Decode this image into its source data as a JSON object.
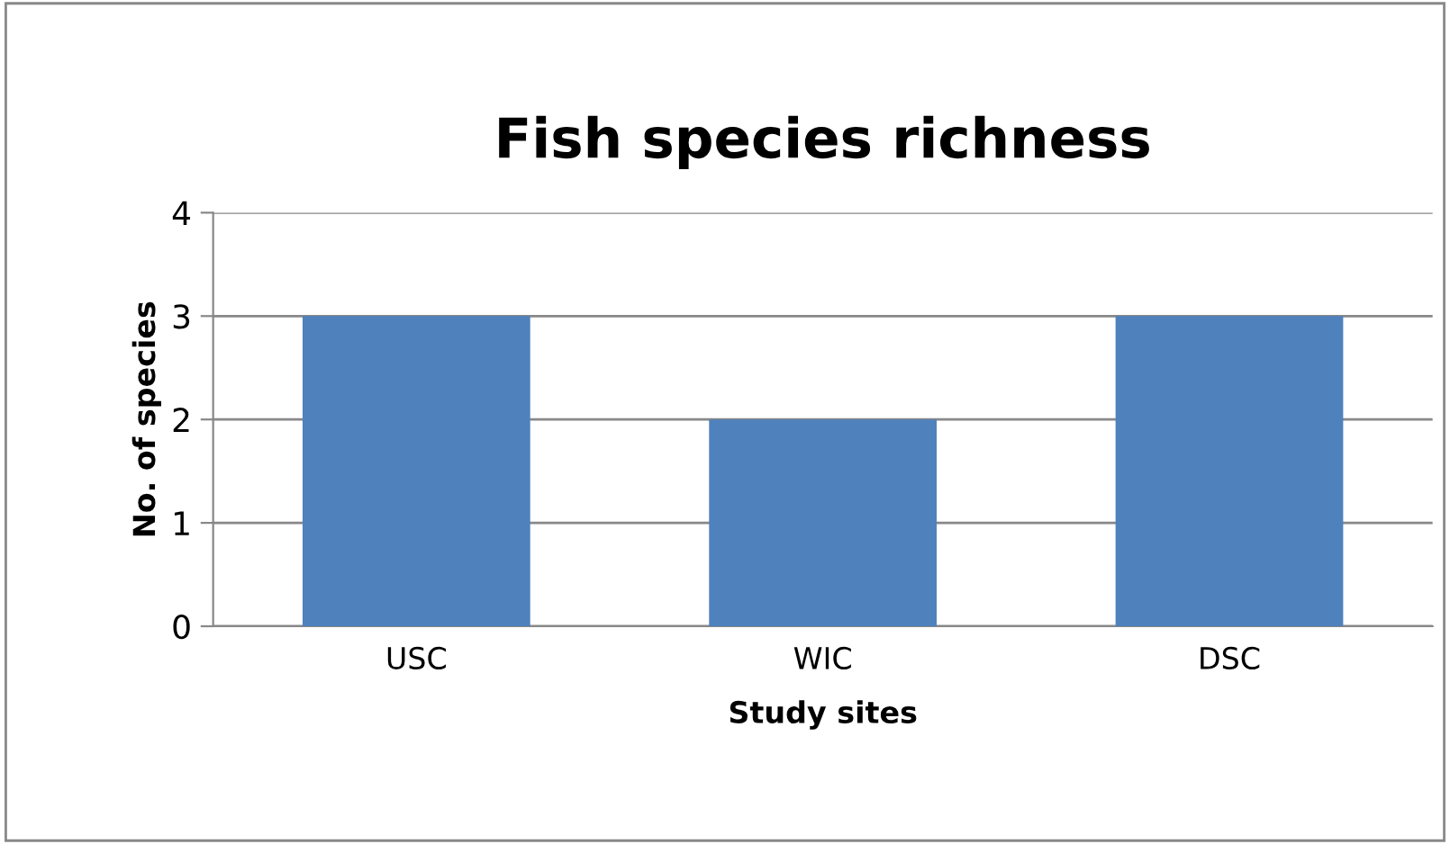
{
  "chart_data": {
    "type": "bar",
    "title": "Fish species richness",
    "xlabel": "Study sites",
    "ylabel": "No. of species",
    "categories": [
      "USC",
      "WIC",
      "DSC"
    ],
    "values": [
      3,
      2,
      3
    ],
    "color": "#4f81bd",
    "ylim": [
      0,
      4
    ],
    "yticks": [
      0,
      1,
      2,
      3,
      4
    ],
    "grid": "y",
    "legend": false
  }
}
